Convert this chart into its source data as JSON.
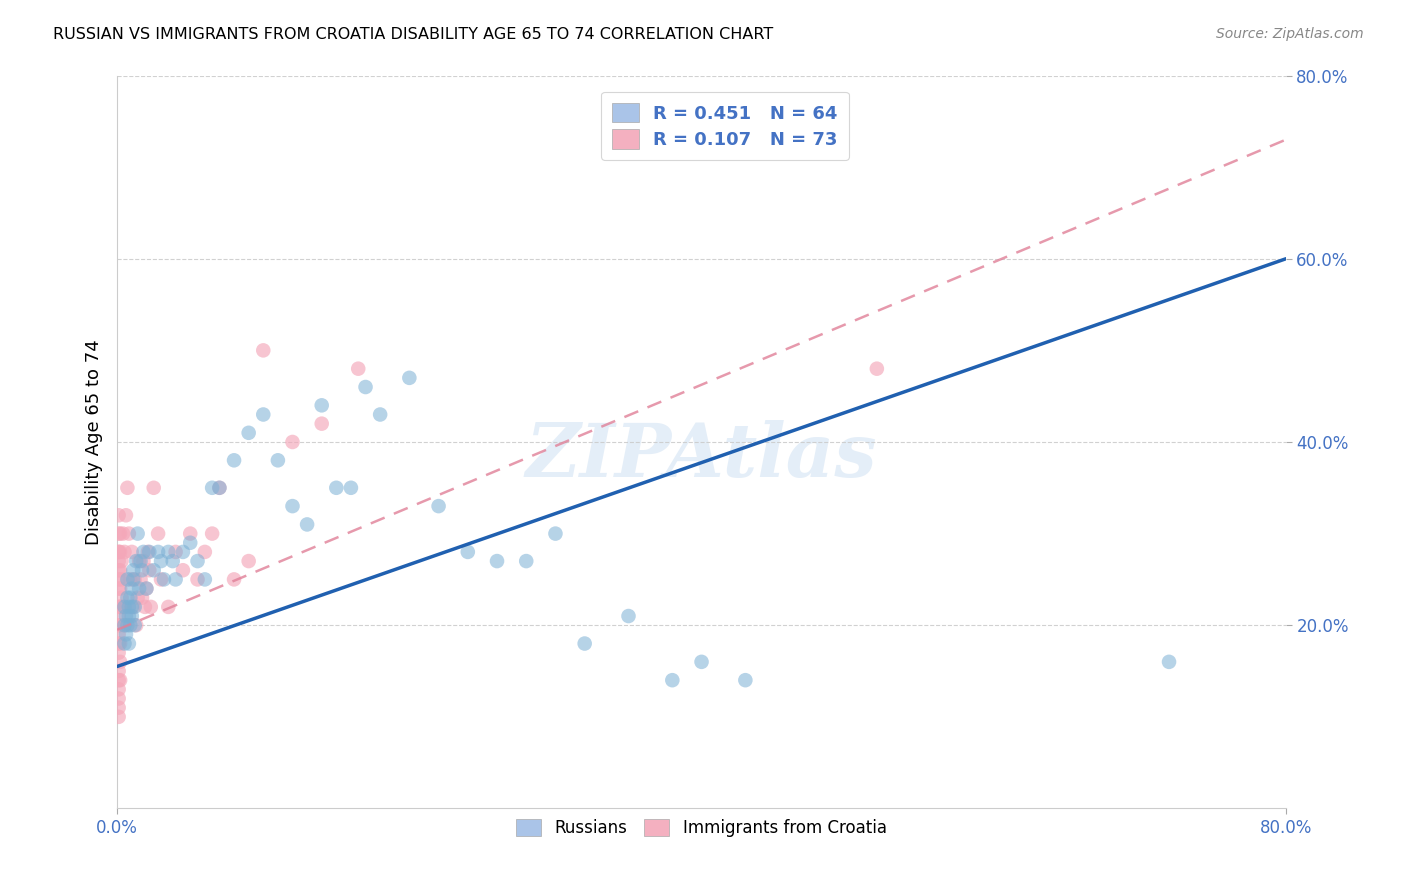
{
  "title": "RUSSIAN VS IMMIGRANTS FROM CROATIA DISABILITY AGE 65 TO 74 CORRELATION CHART",
  "source": "Source: ZipAtlas.com",
  "ylabel": "Disability Age 65 to 74",
  "xmin": 0.0,
  "xmax": 0.8,
  "ymin": 0.0,
  "ymax": 0.8,
  "watermark": "ZIPAtlas",
  "russians_x": [
    0.005,
    0.005,
    0.005,
    0.006,
    0.006,
    0.007,
    0.007,
    0.007,
    0.008,
    0.008,
    0.008,
    0.009,
    0.009,
    0.01,
    0.01,
    0.01,
    0.011,
    0.011,
    0.012,
    0.012,
    0.013,
    0.014,
    0.015,
    0.016,
    0.017,
    0.018,
    0.02,
    0.022,
    0.025,
    0.028,
    0.03,
    0.032,
    0.035,
    0.038,
    0.04,
    0.045,
    0.05,
    0.055,
    0.06,
    0.065,
    0.07,
    0.08,
    0.09,
    0.1,
    0.11,
    0.12,
    0.13,
    0.14,
    0.15,
    0.16,
    0.17,
    0.18,
    0.2,
    0.22,
    0.24,
    0.26,
    0.28,
    0.3,
    0.32,
    0.35,
    0.38,
    0.4,
    0.43,
    0.72
  ],
  "russians_y": [
    0.22,
    0.2,
    0.18,
    0.21,
    0.19,
    0.23,
    0.25,
    0.2,
    0.22,
    0.21,
    0.18,
    0.23,
    0.2,
    0.22,
    0.24,
    0.21,
    0.25,
    0.26,
    0.22,
    0.2,
    0.27,
    0.3,
    0.24,
    0.27,
    0.26,
    0.28,
    0.24,
    0.28,
    0.26,
    0.28,
    0.27,
    0.25,
    0.28,
    0.27,
    0.25,
    0.28,
    0.29,
    0.27,
    0.25,
    0.35,
    0.35,
    0.38,
    0.41,
    0.43,
    0.38,
    0.33,
    0.31,
    0.44,
    0.35,
    0.35,
    0.46,
    0.43,
    0.47,
    0.33,
    0.28,
    0.27,
    0.27,
    0.3,
    0.18,
    0.21,
    0.14,
    0.16,
    0.14,
    0.16
  ],
  "croatia_x": [
    0.001,
    0.001,
    0.001,
    0.001,
    0.001,
    0.001,
    0.001,
    0.001,
    0.001,
    0.001,
    0.001,
    0.001,
    0.001,
    0.001,
    0.001,
    0.001,
    0.001,
    0.001,
    0.001,
    0.001,
    0.002,
    0.002,
    0.002,
    0.002,
    0.002,
    0.002,
    0.002,
    0.002,
    0.002,
    0.002,
    0.003,
    0.003,
    0.003,
    0.004,
    0.004,
    0.005,
    0.005,
    0.006,
    0.007,
    0.008,
    0.009,
    0.01,
    0.011,
    0.012,
    0.013,
    0.014,
    0.015,
    0.016,
    0.017,
    0.018,
    0.019,
    0.02,
    0.021,
    0.022,
    0.023,
    0.025,
    0.028,
    0.03,
    0.035,
    0.04,
    0.045,
    0.05,
    0.055,
    0.06,
    0.065,
    0.07,
    0.08,
    0.09,
    0.1,
    0.12,
    0.14,
    0.165,
    0.52
  ],
  "croatia_y": [
    0.25,
    0.22,
    0.2,
    0.28,
    0.24,
    0.18,
    0.26,
    0.19,
    0.21,
    0.17,
    0.15,
    0.13,
    0.12,
    0.14,
    0.11,
    0.3,
    0.28,
    0.32,
    0.27,
    0.1,
    0.2,
    0.22,
    0.24,
    0.26,
    0.18,
    0.16,
    0.14,
    0.3,
    0.28,
    0.22,
    0.27,
    0.23,
    0.25,
    0.3,
    0.22,
    0.28,
    0.2,
    0.32,
    0.35,
    0.3,
    0.25,
    0.28,
    0.22,
    0.25,
    0.2,
    0.23,
    0.27,
    0.25,
    0.23,
    0.27,
    0.22,
    0.24,
    0.28,
    0.26,
    0.22,
    0.35,
    0.3,
    0.25,
    0.22,
    0.28,
    0.26,
    0.3,
    0.25,
    0.28,
    0.3,
    0.35,
    0.25,
    0.27,
    0.5,
    0.4,
    0.42,
    0.48,
    0.48
  ],
  "blue_line_x": [
    0.0,
    0.8
  ],
  "blue_line_y": [
    0.155,
    0.6
  ],
  "pink_line_x": [
    0.0,
    0.8
  ],
  "pink_line_y": [
    0.195,
    0.73
  ],
  "grid_color": "#cccccc",
  "blue_scatter_color": "#7bafd4",
  "pink_scatter_color": "#f4a7b9",
  "blue_line_color": "#2060b0",
  "pink_line_color": "#e08098",
  "tick_color": "#4472c4",
  "background_color": "#ffffff"
}
